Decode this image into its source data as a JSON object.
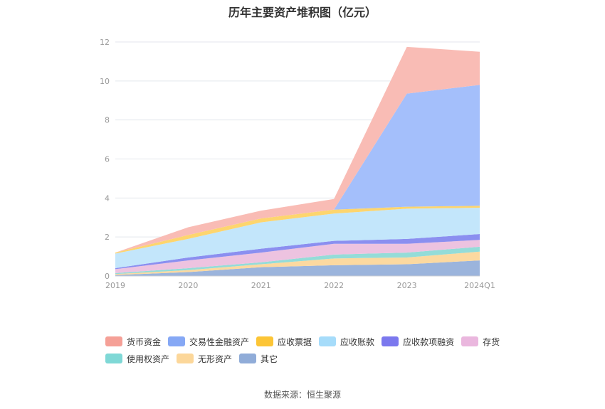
{
  "chart_data": {
    "type": "area",
    "stacked": true,
    "title": "历年主要资产堆积图（亿元）",
    "categories": [
      "2019",
      "2020",
      "2021",
      "2022",
      "2023",
      "2024Q1"
    ],
    "ylim": [
      0,
      12
    ],
    "yticks": [
      0,
      2,
      4,
      6,
      8,
      10,
      12
    ],
    "grid": true,
    "legend_position": "bottom",
    "series": [
      {
        "name": "其它",
        "color": "#9bb4dc",
        "values": [
          0.05,
          0.2,
          0.45,
          0.55,
          0.6,
          0.8
        ]
      },
      {
        "name": "无形资产",
        "color": "#fcd9a0",
        "values": [
          0.05,
          0.1,
          0.15,
          0.35,
          0.35,
          0.45
        ]
      },
      {
        "name": "使用权资产",
        "color": "#94dcd8",
        "values": [
          0.05,
          0.1,
          0.1,
          0.2,
          0.25,
          0.25
        ]
      },
      {
        "name": "存货",
        "color": "#edc3e0",
        "values": [
          0.2,
          0.4,
          0.5,
          0.55,
          0.45,
          0.35
        ]
      },
      {
        "name": "应收款项融资",
        "color": "#8b8ff0",
        "values": [
          0.05,
          0.15,
          0.2,
          0.15,
          0.25,
          0.3
        ]
      },
      {
        "name": "应收账款",
        "color": "#c3e6fb",
        "values": [
          0.75,
          0.95,
          1.35,
          1.4,
          1.55,
          1.35
        ]
      },
      {
        "name": "应收票据",
        "color": "#fdd56e",
        "values": [
          0.05,
          0.2,
          0.2,
          0.2,
          0.1,
          0.1
        ]
      },
      {
        "name": "交易性金融资产",
        "color": "#a4bffb",
        "values": [
          0,
          0,
          0,
          0,
          5.8,
          6.2
        ]
      },
      {
        "name": "货币资金",
        "color": "#f9bcb5",
        "values": [
          0,
          0.4,
          0.4,
          0.55,
          2.4,
          1.7
        ]
      }
    ],
    "legend_order": [
      "货币资金",
      "交易性金融资产",
      "应收票据",
      "应收账款",
      "应收款项融资",
      "存货",
      "使用权资产",
      "无形资产",
      "其它"
    ],
    "legend_colors": {
      "货币资金": "#f5a097",
      "交易性金融资产": "#86a8f5",
      "应收票据": "#fcc536",
      "应收账款": "#a6dcfa",
      "应收款项融资": "#7b78ee",
      "存货": "#eab7de",
      "使用权资产": "#7fd8d6",
      "无形资产": "#fcd79a",
      "其它": "#90acd8"
    }
  },
  "source_text": "数据来源：恒生聚源"
}
